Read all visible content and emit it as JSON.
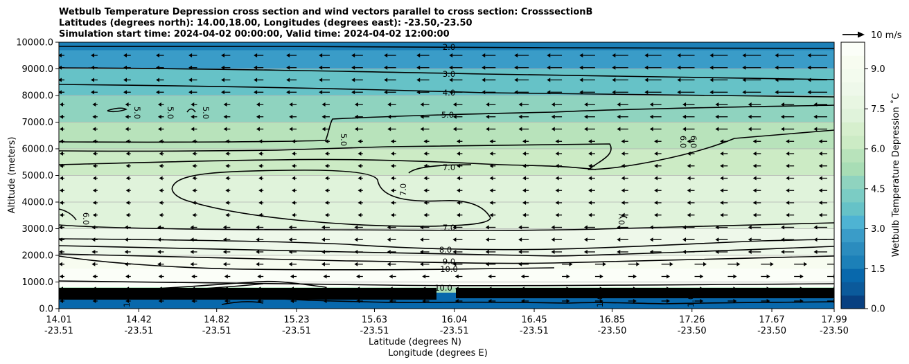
{
  "chart_data": {
    "type": "contourf",
    "title_lines": [
      "Wetbulb Temperature Depression cross section and wind vectors parallel to cross section: CrosssectionB",
      "Latitudes (degrees north): 14.00,18.00, Longitudes (degrees east): -23.50,-23.50",
      "Simulation start time: 2024-04-02 00:00:00, Valid time: 2024-04-02 12:00:00"
    ],
    "xlabel_line1": "Latitude (degrees N)",
    "xlabel_line2": "Longitude (degrees E)",
    "ylabel": "Altitude (meters)",
    "x_ticks": [
      {
        "lat": "14.01",
        "lon": "-23.51"
      },
      {
        "lat": "14.42",
        "lon": "-23.51"
      },
      {
        "lat": "14.82",
        "lon": "-23.51"
      },
      {
        "lat": "15.23",
        "lon": "-23.51"
      },
      {
        "lat": "15.63",
        "lon": "-23.51"
      },
      {
        "lat": "16.04",
        "lon": "-23.51"
      },
      {
        "lat": "16.45",
        "lon": "-23.51"
      },
      {
        "lat": "16.85",
        "lon": "-23.50"
      },
      {
        "lat": "17.26",
        "lon": "-23.50"
      },
      {
        "lat": "17.67",
        "lon": "-23.50"
      },
      {
        "lat": "17.99",
        "lon": "-23.50"
      }
    ],
    "xlim": [
      14.01,
      17.99
    ],
    "y_ticks": [
      "0.0",
      "1000.0",
      "2000.0",
      "3000.0",
      "4000.0",
      "5000.0",
      "6000.0",
      "7000.0",
      "8000.0",
      "9000.0",
      "10000.0"
    ],
    "ylim": [
      0,
      10000
    ],
    "grid": "horizontal",
    "colorbar": {
      "label": "Wetbulb Temperature Depression ˚C",
      "ticks": [
        "0.0",
        "1.5",
        "3.0",
        "4.5",
        "6.0",
        "7.5",
        "9.0"
      ],
      "range": [
        0,
        10
      ],
      "levels": 20,
      "colormap": "GnBu_r",
      "colors": [
        "#084081",
        "#0b5a9b",
        "#0868ac",
        "#1c80b8",
        "#2b8cbe",
        "#3a9cc8",
        "#4eb3d3",
        "#66c2c7",
        "#7bccc4",
        "#8fd3bf",
        "#a8ddb5",
        "#b8e3bb",
        "#ccebc5",
        "#d6efcd",
        "#e0f3db",
        "#e8f6e2",
        "#eef8ea",
        "#f3fbee",
        "#f7fcf0",
        "#fbfef8"
      ]
    },
    "quiver_key": "10 m/s",
    "contour_labels": [
      "2.0",
      "3.0",
      "4.0",
      "5.0",
      "5.0",
      "5.0",
      "5.0",
      "5.0",
      "6.0",
      "6.0",
      "7.0",
      "7.0",
      "7.0",
      "7.0",
      "6.0",
      "8.0",
      "9.0",
      "10.0",
      "10.0",
      "1.0",
      "1.0",
      "1.0"
    ],
    "fill_bands": [
      {
        "z_bottom": 9700,
        "z_top": 10000,
        "value": 1.5
      },
      {
        "z_bottom": 9000,
        "z_top": 9700,
        "value": 2.5
      },
      {
        "z_bottom": 8000,
        "z_top": 9000,
        "value": 3.5
      },
      {
        "z_bottom": 7000,
        "z_top": 8000,
        "value": 4.5
      },
      {
        "z_bottom": 6000,
        "z_top": 7000,
        "value": 5.5
      },
      {
        "z_bottom": 5000,
        "z_top": 6000,
        "value": 6.3
      },
      {
        "z_bottom": 3000,
        "z_top": 5000,
        "value": 7.0
      },
      {
        "z_bottom": 2000,
        "z_top": 3000,
        "value": 8.0
      },
      {
        "z_bottom": 1500,
        "z_top": 2000,
        "value": 9.0
      },
      {
        "z_bottom": 1000,
        "z_top": 1500,
        "value": 10.0
      },
      {
        "z_bottom": 800,
        "z_top": 1000,
        "value": 10.0
      },
      {
        "z_bottom": 600,
        "z_top": 800,
        "value": 5.0
      },
      {
        "z_bottom": 0,
        "z_top": 600,
        "value": 1.0
      }
    ]
  }
}
